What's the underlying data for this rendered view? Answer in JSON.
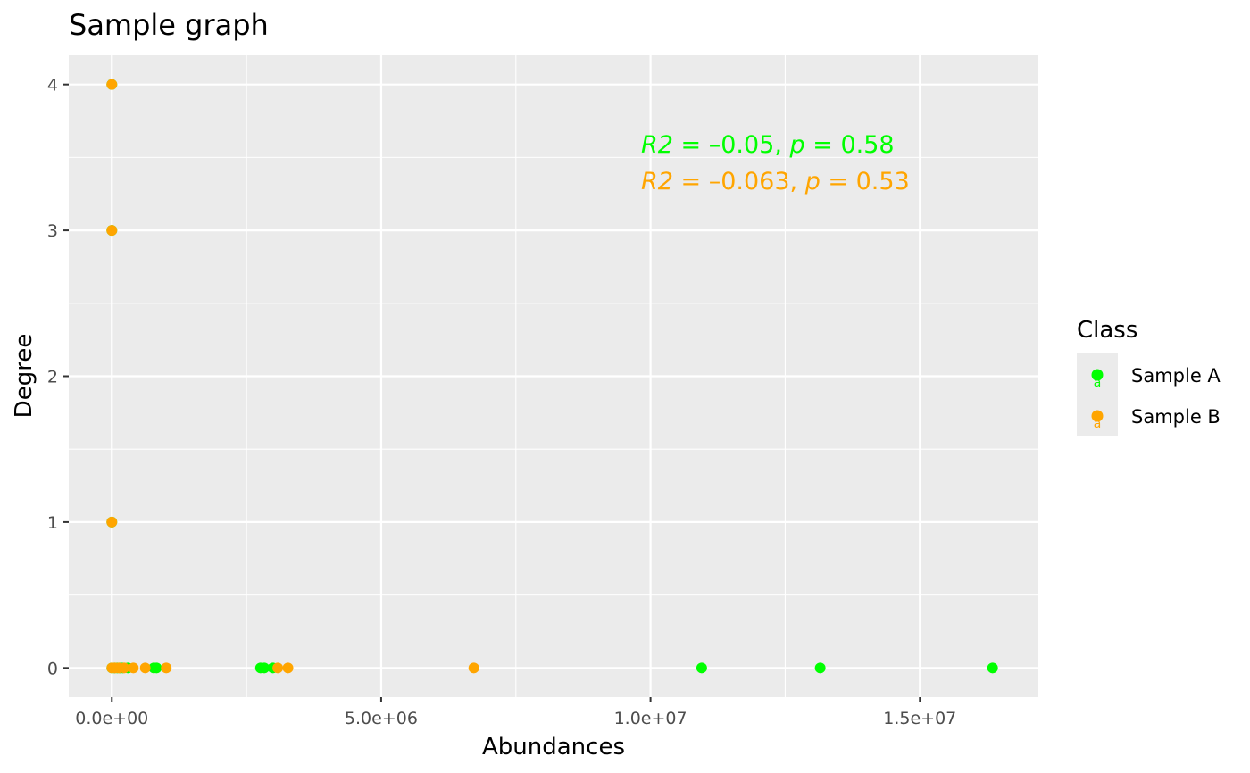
{
  "chart_data": {
    "type": "scatter",
    "title": "Sample graph",
    "xlabel": "Abundances",
    "ylabel": "Degree",
    "xlim": [
      -800000,
      17200000
    ],
    "ylim": [
      -0.2,
      4.2
    ],
    "x_ticks": [
      {
        "value": 0,
        "label": "0.0e+00"
      },
      {
        "value": 5000000,
        "label": "5.0e+06"
      },
      {
        "value": 10000000,
        "label": "1.0e+07"
      },
      {
        "value": 15000000,
        "label": "1.5e+07"
      }
    ],
    "y_ticks": [
      {
        "value": 0,
        "label": "0"
      },
      {
        "value": 1,
        "label": "1"
      },
      {
        "value": 2,
        "label": "2"
      },
      {
        "value": 3,
        "label": "3"
      },
      {
        "value": 4,
        "label": "4"
      }
    ],
    "grid": true,
    "panel_background": "#ebebeb",
    "legend": {
      "title": "Class",
      "placement": "right",
      "entries": [
        {
          "label": "Sample A",
          "color": "#00ff00"
        },
        {
          "label": "Sample B",
          "color": "#ffa500"
        }
      ]
    },
    "series": [
      {
        "name": "Sample A",
        "color": "#00ff00",
        "points": [
          [
            0,
            0
          ],
          [
            50000,
            0
          ],
          [
            100000,
            0
          ],
          [
            150000,
            0
          ],
          [
            200000,
            0
          ],
          [
            300000,
            0
          ],
          [
            780000,
            0
          ],
          [
            830000,
            0
          ],
          [
            2760000,
            0
          ],
          [
            2830000,
            0
          ],
          [
            2990000,
            0
          ],
          [
            10950000,
            0
          ],
          [
            13150000,
            0
          ],
          [
            16350000,
            0
          ],
          [
            0,
            1
          ],
          [
            0,
            3
          ],
          [
            0,
            4
          ]
        ]
      },
      {
        "name": "Sample B",
        "color": "#ffa500",
        "points": [
          [
            0,
            0
          ],
          [
            60000,
            0
          ],
          [
            130000,
            0
          ],
          [
            230000,
            0
          ],
          [
            400000,
            0
          ],
          [
            620000,
            0
          ],
          [
            1010000,
            0
          ],
          [
            3080000,
            0
          ],
          [
            3270000,
            0
          ],
          [
            6720000,
            0
          ],
          [
            0,
            1
          ],
          [
            0,
            3
          ],
          [
            0,
            4
          ]
        ]
      }
    ],
    "annotations": [
      {
        "r2": "R2",
        "mid": " = –0.05, ",
        "p": "p",
        "end": " = 0.58",
        "color": "#00ff00"
      },
      {
        "r2": "R2",
        "mid": " = –0.063, ",
        "p": "p",
        "end": " = 0.53",
        "color": "#ffa500"
      }
    ]
  }
}
